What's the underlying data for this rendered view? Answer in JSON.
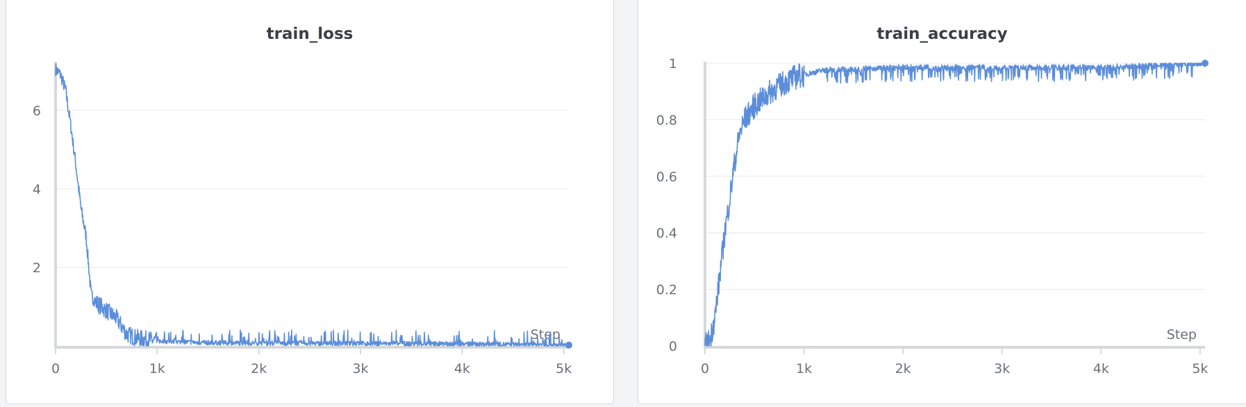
{
  "colors": {
    "line": "#5b8dd9",
    "grid": "#e8e9eb",
    "axis": "#d6d8db",
    "text": "#6b6f76",
    "title": "#3b3f45"
  },
  "chart_data": [
    {
      "type": "line",
      "title": "train_loss",
      "xlabel": "Step",
      "ylabel": "",
      "xlim": [
        0,
        5050
      ],
      "ylim": [
        0,
        7.2
      ],
      "xticks": [
        0,
        1000,
        2000,
        3000,
        4000,
        5000
      ],
      "xtick_labels": [
        "0",
        "1k",
        "2k",
        "3k",
        "4k",
        "5k"
      ],
      "yticks": [
        2,
        4,
        6
      ],
      "ytick_labels": [
        "2",
        "4",
        "6"
      ],
      "grid": true,
      "series": [
        {
          "x": [
            0,
            50,
            100,
            150,
            200,
            250,
            300,
            350,
            400,
            500,
            600,
            700,
            800,
            1000,
            1500,
            2000,
            3000,
            4000,
            5050
          ],
          "y": [
            7.05,
            6.9,
            6.5,
            5.6,
            4.6,
            3.5,
            2.8,
            1.3,
            1.1,
            0.9,
            0.7,
            0.3,
            0.2,
            0.12,
            0.08,
            0.07,
            0.06,
            0.05,
            0.02
          ]
        }
      ]
    },
    {
      "type": "line",
      "title": "train_accuracy",
      "xlabel": "Step",
      "ylabel": "",
      "xlim": [
        0,
        5050
      ],
      "ylim": [
        0,
        1
      ],
      "xticks": [
        0,
        1000,
        2000,
        3000,
        4000,
        5000
      ],
      "xtick_labels": [
        "0",
        "1k",
        "2k",
        "3k",
        "4k",
        "5k"
      ],
      "yticks": [
        0,
        0.2,
        0.4,
        0.6,
        0.8,
        1
      ],
      "ytick_labels": [
        "0",
        "0.2",
        "0.4",
        "0.6",
        "0.8",
        "1"
      ],
      "grid": true,
      "series": [
        {
          "x": [
            0,
            50,
            100,
            150,
            200,
            250,
            300,
            350,
            400,
            500,
            600,
            700,
            800,
            900,
            1000,
            1200,
            1500,
            2000,
            3000,
            4000,
            5050
          ],
          "y": [
            0.0,
            0.02,
            0.1,
            0.25,
            0.4,
            0.52,
            0.65,
            0.75,
            0.8,
            0.85,
            0.88,
            0.91,
            0.93,
            0.95,
            0.96,
            0.975,
            0.98,
            0.985,
            0.985,
            0.985,
            1.0
          ]
        }
      ]
    }
  ]
}
